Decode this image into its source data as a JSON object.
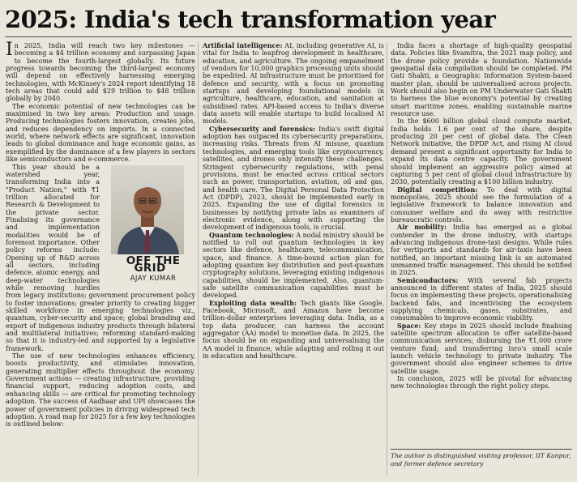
{
  "headline": "2025: India's tech transformation year",
  "column_label": "OFF THE GRID",
  "author": "AJAY KUMAR",
  "columns": {
    "c1": [
      {
        "dropcap": "I",
        "text": "n 2025, India will reach two key milestones — becoming a $4 trillion economy and surpassing Japan to become the fourth-largest globally. Its future progress towards becoming the third-largest economy will depend on effectively harnessing emerging technologies, with McKinsey's 2024 report identifying 18 tech areas that could add $29 trillion to $48 trillion globally by 2040."
      },
      {
        "text": "The economic potential of new technologies can be maximised in two key areas: Production and usage. Producing technologies fosters innovation, creates jobs, and reduces dependency on imports. In a connected world, where network effects are significant, innovation leads to global dominance and huge economic gains, as exemplified by the dominance of a few players in sectors like semiconductors and e-commerce."
      },
      {
        "text": "This year should be a watershed year, transforming India into a \"Product Nation,\" with ₹1 trillion allocated for Research & Development to the private sector. Finalising its governance and implementation modalities would be of foremost importance. Other policy reforms include: Opening up of R&D across all sectors, including defence, atomic energy, and deep-water technologies while removing hurdles from legacy institutions; government procurement policy to foster innovations; greater priority to creating bigger skilled workforce in emerging technologies viz., quantum, cyber-security and space; global branding and export of indigenous industry products through bilateral and multilateral initiatives; reforming standard-making so that it is industry-led and supported by a legislative framework."
      },
      {
        "text": "The use of new technologies enhances efficiency, boosts productivity, and stimulates innovation, generating multiplier effects throughout the economy. Government actions — creating infrastructure, providing financial support, reducing adoption costs, and enhancing skills — are critical for promoting technology adoption. The success of Aadhaar and UPI showcases the power of government policies in driving widespread tech adoption. A road map for 2025 for a few key technologies is outlined below:"
      }
    ],
    "c2": [
      {
        "sub": "Artificial intelligence:",
        "text": "AI, including generative AI, is vital for India to leapfrog development in healthcare, education, and agriculture. The ongoing empanelment of vendors for 10,000 graphics processing units should be expedited. AI infrastructure must be prioritised for defence and security, with a focus on promoting startups and developing foundational models in agriculture, healthcare, education, and sanitation at subsidised rates. API-based access to India's diverse data assets will enable startups to build localised AI models."
      },
      {
        "sub": "Cybersecurity and forensics:",
        "text": "India's swift digital adoption has outpaced its cybersecurity preparations, increasing risks. Threats from AI misuse, quantum technologies, and emerging tools like cryptocurrency, satellites, and drones only intensify these challenges. Stringent cybersecurity regulations, with penal provisions, must be enacted across critical sectors such as power, transportation, aviation, oil and gas, and health care. The Digital Personal Data Protection Act (DPDP), 2023, should be implemented early in 2025. Expanding the use of digital forensics in businesses by notifying private labs as examiners of electronic evidence, along with supporting the development of indigenous tools, is crucial."
      },
      {
        "sub": "Quantum technologies:",
        "text": "A nodal ministry should be notified to roll out quantum technologies in key sectors like defence, healthcare, telecommunication, space, and finance. A time-bound action plan for adopting quantum key distribution and post-quantum cryptography solutions, leveraging existing indigenous capabilities, should be implemented. Also, quantum-safe satellite communication capabilities must be developed."
      },
      {
        "sub": "Exploiting data wealth:",
        "text": "Tech giants like Google, Facebook, Microsoft, and Amazon have become trillion-dollar enterprises leveraging data. India, as a top data producer, can harness the account aggregator (AA) model to monetise data. In 2025, the focus should be on expanding and universalising the AA model in finance, while adapting and rolling it out in education and healthcare."
      }
    ],
    "c3": [
      {
        "text": "India faces a shortage of high-quality geospatial data. Policies like Svamitva, the 2021 map policy, and the drone policy provide a foundation. Nationwide geospatial data compilation should be completed. PM Gati Shakti, a Geographic Information System-based master plan, should be universalised across projects. Work should also begin on PM Underwater Gati Shakti to harness the blue economy's potential by creating smart maritime zones, enabling sustainable marine resource use."
      },
      {
        "text": "In the $600 billion global cloud compute market, India holds 1.6 per cent of the share, despite producing 20 per cent of global data. The Clean Network initiative, the DPDP Act, and rising AI cloud demand present a significant opportunity for India to expand its data centre capacity. The government should implement an aggressive policy aimed at capturing 5 per cent of global cloud infrastructure by 2030, potentially creating a $100 billion industry."
      },
      {
        "sub": "Digital competition:",
        "text": "To deal with digital monopolies, 2025 should see the formulation of a legislative framework to balance innovation and consumer welfare and do away with restrictive bureaucratic controls."
      },
      {
        "sub": "Air mobility:",
        "text": "India has emerged as a global contender in the drone industry, with startups advancing indigenous drone-taxi designs. While rules for vertiports and standards for air-taxis have been notified, an important missing link is an automated unmanned traffic management. This should be notified in 2025."
      },
      {
        "sub": "Semiconductors:",
        "text": "With several fab projects announced in different states of India, 2025 should focus on implementing these projects, operationalising backend fabs, and incentivising the ecosystem supplying chemicals, gases, substrates, and consumables to improve economic viability."
      },
      {
        "sub": "Space:",
        "text": "Key steps in 2025 should include finalising satellite spectrum allocation to offer satellite-based communication services; disbursing the ₹1,000 crore venture fund; and transferring Isro's small scale launch vehicle technology to private industry. The government should also engineer schemes to drive satellite usage."
      },
      {
        "text": "In conclusion, 2025 will be pivotal for advancing new technologies through the right policy steps."
      }
    ]
  },
  "footnote": "The author is distinguished visiting professor, IIT Kanpur, and former defence secretary",
  "icons": {
    "portrait": "author-portrait-icon"
  }
}
